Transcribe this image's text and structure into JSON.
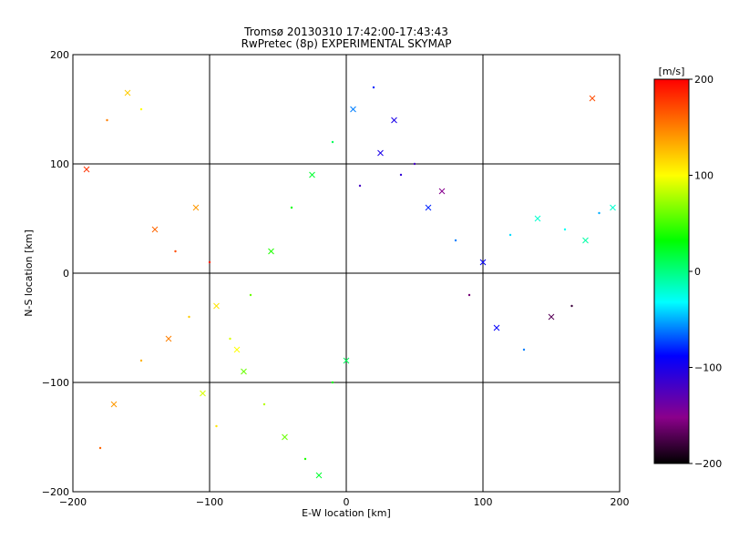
{
  "chart_data": {
    "type": "scatter",
    "title": "Tromsø 20130310 17:42:00-17:43:43",
    "subtitle": "RwPretec (8p) EXPERIMENTAL SKYMAP",
    "xlabel": "E-W location [km]",
    "ylabel": "N-S location [km]",
    "xlim": [
      -200,
      200
    ],
    "ylim": [
      -200,
      200
    ],
    "xticks": [
      -200,
      -100,
      0,
      100,
      200
    ],
    "yticks": [
      -200,
      -100,
      0,
      100,
      200
    ],
    "xtick_labels": [
      "−200",
      "−100",
      "0",
      "100",
      "200"
    ],
    "ytick_labels": [
      "−200",
      "−100",
      "0",
      "100",
      "200"
    ],
    "grid": true,
    "marker_types": [
      "x",
      "dot"
    ],
    "colorbar": {
      "label": "[m/s]",
      "range": [
        -200,
        200
      ],
      "ticks": [
        200,
        100,
        0,
        -100,
        -200
      ],
      "tick_labels": [
        "200",
        "100",
        "0",
        "−100",
        "−200"
      ],
      "colormap": [
        "#000000",
        "#8b008b",
        "#0000ff",
        "#00ffff",
        "#00ff00",
        "#ffff00",
        "#ff0000"
      ]
    },
    "series": [
      {
        "x": [
          -190,
          -175,
          -160,
          -150,
          -140,
          -125,
          -110,
          -100,
          -95,
          -85,
          -75,
          -60,
          -45,
          -30,
          -20,
          -10,
          0,
          10,
          25,
          40,
          60,
          80,
          100,
          120,
          140,
          160,
          175,
          185,
          195,
          -180,
          -170,
          -150,
          -130,
          -115,
          -105,
          -95,
          -80,
          -70,
          -55,
          -40,
          -25,
          -10,
          5,
          20,
          35,
          50,
          70,
          90,
          110,
          130,
          150,
          165,
          180
        ],
        "y": [
          95,
          140,
          165,
          150,
          40,
          20,
          60,
          10,
          -30,
          -60,
          -90,
          -120,
          -150,
          -170,
          -185,
          -100,
          -80,
          80,
          110,
          90,
          60,
          30,
          10,
          35,
          50,
          40,
          30,
          55,
          60,
          -160,
          -120,
          -80,
          -60,
          -40,
          -110,
          -140,
          -70,
          -20,
          20,
          60,
          90,
          120,
          150,
          170,
          140,
          100,
          75,
          -20,
          -50,
          -70,
          -40,
          -30,
          160
        ],
        "v": [
          180,
          150,
          120,
          100,
          160,
          170,
          140,
          190,
          110,
          90,
          60,
          80,
          60,
          40,
          20,
          30,
          10,
          -120,
          -100,
          -110,
          -80,
          -60,
          -90,
          -40,
          -20,
          -30,
          -10,
          -50,
          -20,
          160,
          140,
          130,
          150,
          120,
          90,
          110,
          100,
          60,
          40,
          30,
          20,
          10,
          -60,
          -80,
          -100,
          -120,
          -150,
          -160,
          -90,
          -60,
          -170,
          -180,
          170
        ]
      }
    ]
  }
}
